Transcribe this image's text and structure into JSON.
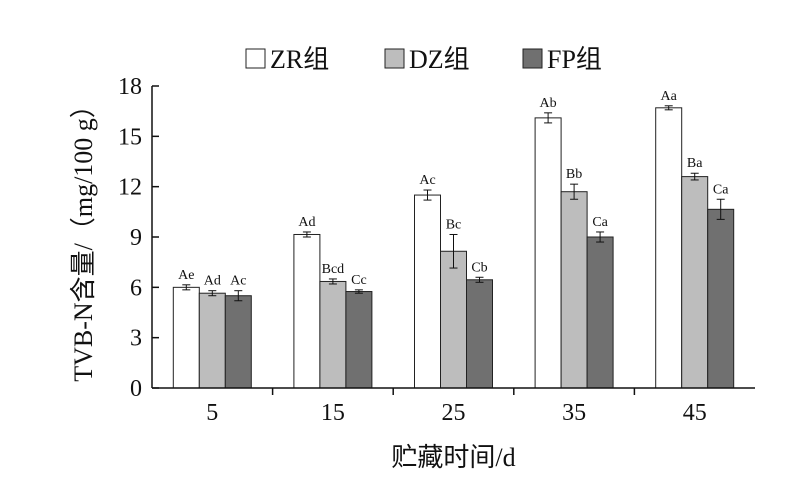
{
  "chart_data": {
    "type": "bar",
    "xlabel": "贮藏时间/d",
    "ylabel": "TVB-N含量/（mg/100 g）",
    "ylim": [
      0,
      18
    ],
    "yticks": [
      0,
      3,
      6,
      9,
      12,
      15,
      18
    ],
    "categories": [
      "5",
      "15",
      "25",
      "35",
      "45"
    ],
    "legend_position": "top",
    "grid": false,
    "series": [
      {
        "name": "ZR组",
        "color": "#ffffff",
        "values": [
          6.0,
          9.15,
          11.5,
          16.1,
          16.7
        ],
        "errors": [
          0.15,
          0.15,
          0.3,
          0.3,
          0.12
        ],
        "labels": [
          "Ae",
          "Ad",
          "Ac",
          "Ab",
          "Aa"
        ]
      },
      {
        "name": "DZ组",
        "color": "#bdbdbd",
        "values": [
          5.65,
          6.35,
          8.15,
          11.7,
          12.6
        ],
        "errors": [
          0.15,
          0.15,
          1.0,
          0.45,
          0.2
        ],
        "labels": [
          "Ad",
          "Bcd",
          "Bc",
          "Bb",
          "Ba"
        ]
      },
      {
        "name": "FP组",
        "color": "#707070",
        "values": [
          5.5,
          5.75,
          6.45,
          9.0,
          10.65
        ],
        "errors": [
          0.3,
          0.1,
          0.15,
          0.3,
          0.6
        ],
        "labels": [
          "Ac",
          "Cc",
          "Cb",
          "Ca",
          "Ca"
        ]
      }
    ]
  }
}
